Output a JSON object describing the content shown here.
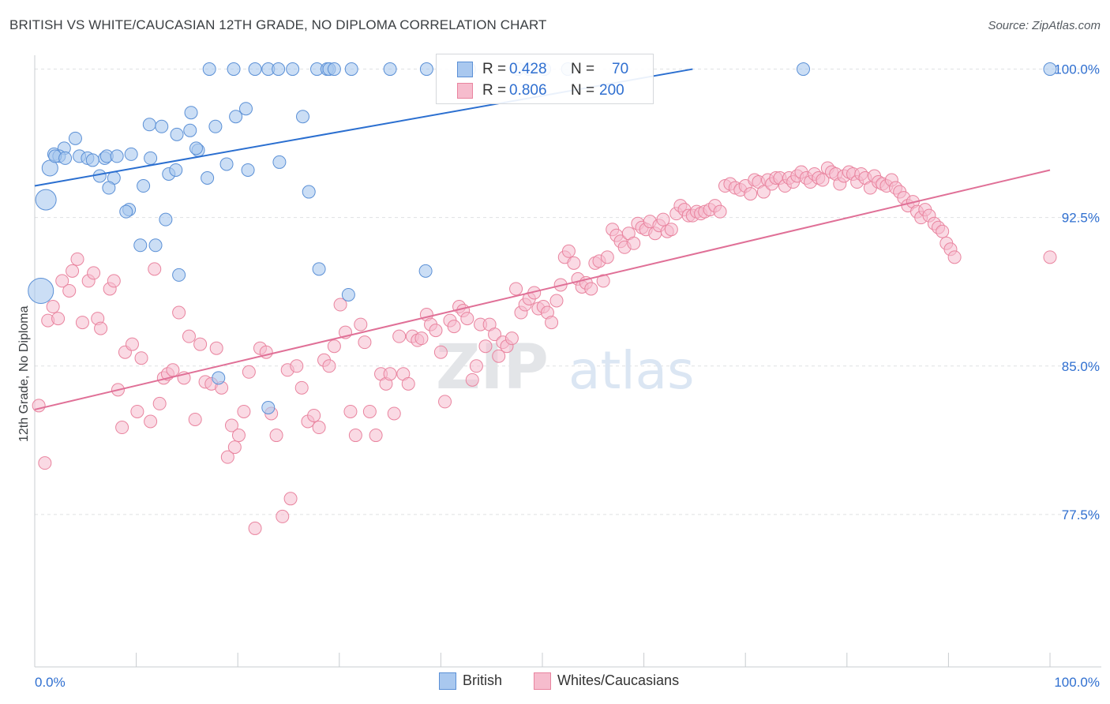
{
  "header": {
    "title": "BRITISH VS WHITE/CAUCASIAN 12TH GRADE, NO DIPLOMA CORRELATION CHART",
    "source": "Source: ZipAtlas.com"
  },
  "legend_box": {
    "rows": [
      {
        "r_label": "R =",
        "r_value": "0.428",
        "n_label": "N =",
        "n_value": "70"
      },
      {
        "r_label": "R =",
        "r_value": "0.806",
        "n_label": "N =",
        "n_value": "200"
      }
    ]
  },
  "bottom_legend": {
    "british": "British",
    "whites": "Whites/Caucasians"
  },
  "watermark": {
    "zip": "ZIP",
    "atlas": "atlas"
  },
  "colors": {
    "british_fill": "#a9c8ef",
    "british_stroke": "#5b90d6",
    "british_line": "#2b6fd0",
    "whites_fill": "#f6bccd",
    "whites_stroke": "#e9849f",
    "whites_line": "#e07097",
    "value_text": "#2f6fd0",
    "grid": "#dfe1e4"
  },
  "chart_data": {
    "type": "scatter",
    "title": "BRITISH VS WHITE/CAUCASIAN 12TH GRADE, NO DIPLOMA CORRELATION CHART",
    "xlabel": "",
    "ylabel": "12th Grade, No Diploma",
    "xlim": [
      0,
      100
    ],
    "ylim": [
      69.8,
      100.7
    ],
    "x_tick_labels": [
      "0.0%",
      "100.0%"
    ],
    "y_ticks": [
      77.5,
      85.0,
      92.5,
      100.0
    ],
    "y_tick_labels": [
      "77.5%",
      "85.0%",
      "92.5%",
      "100.0%"
    ],
    "grid": true,
    "legend_position": "top-center",
    "series": [
      {
        "name": "British",
        "r": 0.428,
        "n": 70,
        "trend": {
          "x0": 0,
          "y0": 94.1,
          "x1": 64.8,
          "y1": 100.0
        },
        "points": [
          [
            17.2,
            100
          ],
          [
            19.6,
            100
          ],
          [
            21.7,
            100
          ],
          [
            23.0,
            100
          ],
          [
            24.0,
            100
          ],
          [
            25.4,
            100
          ],
          [
            27.8,
            100
          ],
          [
            28.8,
            100
          ],
          [
            29.0,
            100
          ],
          [
            29.5,
            100
          ],
          [
            31.2,
            100
          ],
          [
            35.0,
            100
          ],
          [
            38.6,
            100
          ],
          [
            42.8,
            100
          ],
          [
            47.6,
            100
          ],
          [
            48.7,
            100
          ],
          [
            50.2,
            100
          ],
          [
            52.5,
            100
          ],
          [
            75.7,
            100
          ],
          [
            100.0,
            100
          ],
          [
            20.8,
            98
          ],
          [
            26.4,
            97.6
          ],
          [
            19.8,
            97.6
          ],
          [
            15.4,
            97.8
          ],
          [
            11.3,
            97.2
          ],
          [
            12.5,
            97.1
          ],
          [
            15.3,
            96.9
          ],
          [
            17.8,
            97.1
          ],
          [
            14.0,
            96.7
          ],
          [
            4.0,
            96.5
          ],
          [
            2.9,
            96.0
          ],
          [
            16.1,
            95.9
          ],
          [
            15.9,
            96.0
          ],
          [
            1.9,
            95.7
          ],
          [
            2.4,
            95.6
          ],
          [
            4.4,
            95.6
          ],
          [
            5.2,
            95.5
          ],
          [
            6.9,
            95.5
          ],
          [
            5.7,
            95.4
          ],
          [
            7.1,
            95.6
          ],
          [
            8.1,
            95.6
          ],
          [
            9.5,
            95.7
          ],
          [
            11.4,
            95.5
          ],
          [
            1.5,
            95.0
          ],
          [
            24.1,
            95.3
          ],
          [
            18.9,
            95.2
          ],
          [
            13.2,
            94.7
          ],
          [
            6.4,
            94.6
          ],
          [
            7.8,
            94.5
          ],
          [
            17.0,
            94.5
          ],
          [
            7.3,
            94.0
          ],
          [
            10.7,
            94.1
          ],
          [
            27.0,
            93.8
          ],
          [
            1.1,
            93.4
          ],
          [
            9.3,
            92.9
          ],
          [
            9.0,
            92.8
          ],
          [
            12.9,
            92.4
          ],
          [
            10.4,
            91.1
          ],
          [
            11.9,
            91.1
          ],
          [
            14.2,
            89.6
          ],
          [
            28.0,
            89.9
          ],
          [
            38.5,
            89.8
          ],
          [
            0.6,
            88.8
          ],
          [
            30.9,
            88.6
          ],
          [
            18.1,
            84.4
          ],
          [
            23.0,
            82.9
          ],
          [
            2.0,
            95.6
          ],
          [
            3.0,
            95.5
          ],
          [
            13.9,
            94.9
          ],
          [
            21.0,
            94.9
          ]
        ]
      },
      {
        "name": "Whites/Caucasians",
        "r": 0.806,
        "n": 200,
        "trend": {
          "x0": 0,
          "y0": 82.8,
          "x1": 100,
          "y1": 94.9
        },
        "points": [
          [
            0.4,
            83.0
          ],
          [
            1.0,
            80.1
          ],
          [
            1.3,
            87.3
          ],
          [
            1.8,
            88.0
          ],
          [
            2.3,
            87.4
          ],
          [
            2.7,
            89.3
          ],
          [
            3.4,
            88.8
          ],
          [
            3.7,
            89.8
          ],
          [
            4.2,
            90.4
          ],
          [
            4.7,
            87.2
          ],
          [
            5.3,
            89.3
          ],
          [
            5.8,
            89.7
          ],
          [
            6.2,
            87.4
          ],
          [
            6.5,
            86.9
          ],
          [
            7.4,
            88.9
          ],
          [
            7.8,
            89.3
          ],
          [
            8.2,
            83.8
          ],
          [
            8.6,
            81.9
          ],
          [
            8.9,
            85.7
          ],
          [
            9.6,
            86.1
          ],
          [
            10.1,
            82.7
          ],
          [
            10.5,
            85.4
          ],
          [
            11.4,
            82.2
          ],
          [
            11.8,
            89.9
          ],
          [
            12.3,
            83.1
          ],
          [
            12.7,
            84.4
          ],
          [
            13.1,
            84.6
          ],
          [
            13.6,
            84.8
          ],
          [
            14.2,
            87.7
          ],
          [
            14.7,
            84.4
          ],
          [
            15.2,
            86.5
          ],
          [
            15.8,
            82.3
          ],
          [
            16.3,
            86.1
          ],
          [
            16.8,
            84.2
          ],
          [
            17.4,
            84.1
          ],
          [
            17.9,
            85.9
          ],
          [
            18.4,
            83.9
          ],
          [
            19.0,
            80.4
          ],
          [
            19.4,
            82.0
          ],
          [
            19.7,
            80.9
          ],
          [
            20.1,
            81.5
          ],
          [
            20.6,
            82.7
          ],
          [
            21.1,
            84.7
          ],
          [
            21.7,
            76.8
          ],
          [
            22.2,
            85.9
          ],
          [
            22.8,
            85.7
          ],
          [
            23.3,
            82.6
          ],
          [
            23.8,
            81.5
          ],
          [
            24.4,
            77.4
          ],
          [
            24.9,
            84.8
          ],
          [
            25.2,
            78.3
          ],
          [
            25.8,
            85.0
          ],
          [
            26.3,
            83.9
          ],
          [
            26.9,
            82.2
          ],
          [
            27.5,
            82.5
          ],
          [
            28.0,
            81.9
          ],
          [
            28.5,
            85.3
          ],
          [
            29.0,
            85.0
          ],
          [
            29.5,
            86.0
          ],
          [
            30.1,
            88.1
          ],
          [
            30.6,
            86.7
          ],
          [
            31.1,
            82.7
          ],
          [
            31.6,
            81.5
          ],
          [
            32.1,
            87.1
          ],
          [
            32.5,
            86.2
          ],
          [
            33.0,
            82.7
          ],
          [
            33.6,
            81.5
          ],
          [
            34.1,
            84.6
          ],
          [
            34.6,
            84.1
          ],
          [
            35.0,
            84.6
          ],
          [
            35.4,
            82.6
          ],
          [
            35.9,
            86.5
          ],
          [
            36.3,
            84.6
          ],
          [
            36.8,
            84.1
          ],
          [
            37.2,
            86.5
          ],
          [
            37.7,
            86.3
          ],
          [
            38.1,
            86.4
          ],
          [
            38.6,
            87.6
          ],
          [
            39.0,
            87.1
          ],
          [
            39.5,
            86.8
          ],
          [
            40.0,
            85.7
          ],
          [
            40.4,
            83.2
          ],
          [
            40.9,
            87.3
          ],
          [
            41.3,
            87.0
          ],
          [
            41.8,
            88.0
          ],
          [
            42.2,
            87.8
          ],
          [
            42.6,
            87.4
          ],
          [
            43.1,
            84.3
          ],
          [
            43.5,
            85.0
          ],
          [
            43.9,
            87.1
          ],
          [
            44.4,
            86.0
          ],
          [
            44.8,
            87.1
          ],
          [
            45.3,
            86.6
          ],
          [
            45.7,
            85.5
          ],
          [
            46.1,
            86.2
          ],
          [
            46.5,
            86.0
          ],
          [
            47.0,
            86.4
          ],
          [
            47.4,
            88.9
          ],
          [
            47.9,
            87.7
          ],
          [
            48.3,
            88.1
          ],
          [
            48.7,
            88.4
          ],
          [
            49.2,
            88.7
          ],
          [
            49.6,
            87.9
          ],
          [
            50.1,
            88.0
          ],
          [
            50.5,
            87.7
          ],
          [
            50.9,
            87.2
          ],
          [
            51.4,
            88.3
          ],
          [
            51.8,
            89.1
          ],
          [
            52.2,
            90.5
          ],
          [
            52.6,
            90.8
          ],
          [
            53.1,
            90.2
          ],
          [
            53.5,
            89.4
          ],
          [
            53.9,
            89.0
          ],
          [
            54.3,
            89.2
          ],
          [
            54.8,
            88.9
          ],
          [
            55.2,
            90.2
          ],
          [
            55.6,
            90.3
          ],
          [
            56.0,
            89.3
          ],
          [
            56.4,
            90.5
          ],
          [
            56.9,
            91.9
          ],
          [
            57.3,
            91.6
          ],
          [
            57.7,
            91.3
          ],
          [
            58.1,
            91.0
          ],
          [
            58.5,
            91.7
          ],
          [
            59.0,
            91.2
          ],
          [
            59.4,
            92.2
          ],
          [
            59.8,
            92.0
          ],
          [
            60.2,
            91.9
          ],
          [
            60.6,
            92.3
          ],
          [
            61.1,
            91.7
          ],
          [
            61.5,
            92.1
          ],
          [
            61.9,
            92.4
          ],
          [
            62.3,
            91.8
          ],
          [
            62.7,
            91.9
          ],
          [
            63.2,
            92.7
          ],
          [
            63.6,
            93.1
          ],
          [
            64.0,
            92.9
          ],
          [
            64.4,
            92.6
          ],
          [
            64.8,
            92.6
          ],
          [
            65.2,
            92.8
          ],
          [
            65.6,
            92.7
          ],
          [
            66.0,
            92.8
          ],
          [
            66.5,
            92.9
          ],
          [
            67.0,
            93.1
          ],
          [
            67.5,
            92.8
          ],
          [
            68.0,
            94.1
          ],
          [
            68.5,
            94.2
          ],
          [
            69.0,
            94.0
          ],
          [
            69.5,
            93.9
          ],
          [
            70.0,
            94.1
          ],
          [
            70.5,
            93.7
          ],
          [
            70.9,
            94.4
          ],
          [
            71.3,
            94.3
          ],
          [
            71.8,
            93.8
          ],
          [
            72.2,
            94.4
          ],
          [
            72.6,
            94.2
          ],
          [
            73.0,
            94.5
          ],
          [
            73.4,
            94.5
          ],
          [
            73.9,
            94.1
          ],
          [
            74.3,
            94.5
          ],
          [
            74.7,
            94.3
          ],
          [
            75.1,
            94.6
          ],
          [
            75.5,
            94.8
          ],
          [
            76.0,
            94.5
          ],
          [
            76.4,
            94.3
          ],
          [
            76.8,
            94.7
          ],
          [
            77.2,
            94.5
          ],
          [
            77.6,
            94.4
          ],
          [
            78.1,
            95.0
          ],
          [
            78.5,
            94.8
          ],
          [
            78.9,
            94.7
          ],
          [
            79.3,
            94.2
          ],
          [
            79.7,
            94.6
          ],
          [
            80.2,
            94.8
          ],
          [
            80.6,
            94.7
          ],
          [
            81.0,
            94.3
          ],
          [
            81.4,
            94.7
          ],
          [
            81.8,
            94.5
          ],
          [
            82.3,
            94.0
          ],
          [
            82.7,
            94.6
          ],
          [
            83.1,
            94.3
          ],
          [
            83.5,
            94.2
          ],
          [
            83.9,
            94.1
          ],
          [
            84.4,
            94.4
          ],
          [
            84.8,
            94.0
          ],
          [
            85.2,
            93.8
          ],
          [
            85.6,
            93.5
          ],
          [
            86.0,
            93.1
          ],
          [
            86.5,
            93.3
          ],
          [
            86.9,
            92.8
          ],
          [
            87.3,
            92.5
          ],
          [
            87.7,
            92.9
          ],
          [
            88.1,
            92.6
          ],
          [
            88.6,
            92.2
          ],
          [
            89.0,
            92.0
          ],
          [
            89.4,
            91.8
          ],
          [
            89.8,
            91.2
          ],
          [
            90.2,
            90.9
          ],
          [
            90.6,
            90.5
          ],
          [
            100.0,
            90.5
          ]
        ]
      }
    ]
  }
}
